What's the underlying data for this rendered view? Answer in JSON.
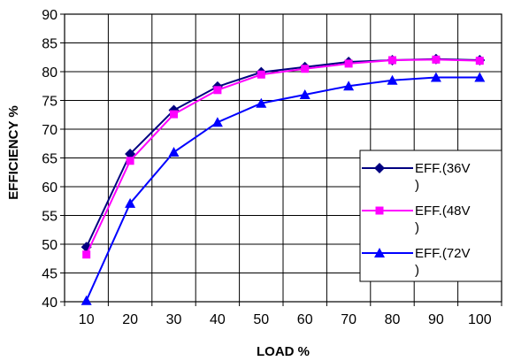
{
  "chart_data": {
    "type": "line",
    "title": "",
    "xlabel": "LOAD %",
    "ylabel": "EFFICIENCY %",
    "categories": [
      "10",
      "20",
      "30",
      "40",
      "50",
      "60",
      "70",
      "80",
      "90",
      "100"
    ],
    "ylim": [
      40,
      90
    ],
    "yticks": [
      "40",
      "45",
      "50",
      "55",
      "60",
      "65",
      "70",
      "75",
      "80",
      "85",
      "90"
    ],
    "grid": true,
    "legend_position": "bottom-right",
    "series": [
      {
        "name": "EFF.(36V)",
        "color": "#000080",
        "marker": "diamond",
        "values": [
          49.5,
          65.7,
          73.3,
          77.4,
          79.9,
          80.8,
          81.7,
          82.0,
          82.2,
          82.0
        ]
      },
      {
        "name": "EFF.(48V)",
        "color": "#ff00ff",
        "marker": "square",
        "values": [
          48.2,
          64.5,
          72.6,
          76.8,
          79.5,
          80.5,
          81.4,
          82.0,
          82.1,
          81.9
        ]
      },
      {
        "name": "EFF.(72V)",
        "color": "#0000ff",
        "marker": "triangle",
        "values": [
          40.2,
          57.1,
          66.0,
          71.2,
          74.5,
          76.0,
          77.5,
          78.5,
          79.0,
          79.0
        ]
      }
    ]
  }
}
